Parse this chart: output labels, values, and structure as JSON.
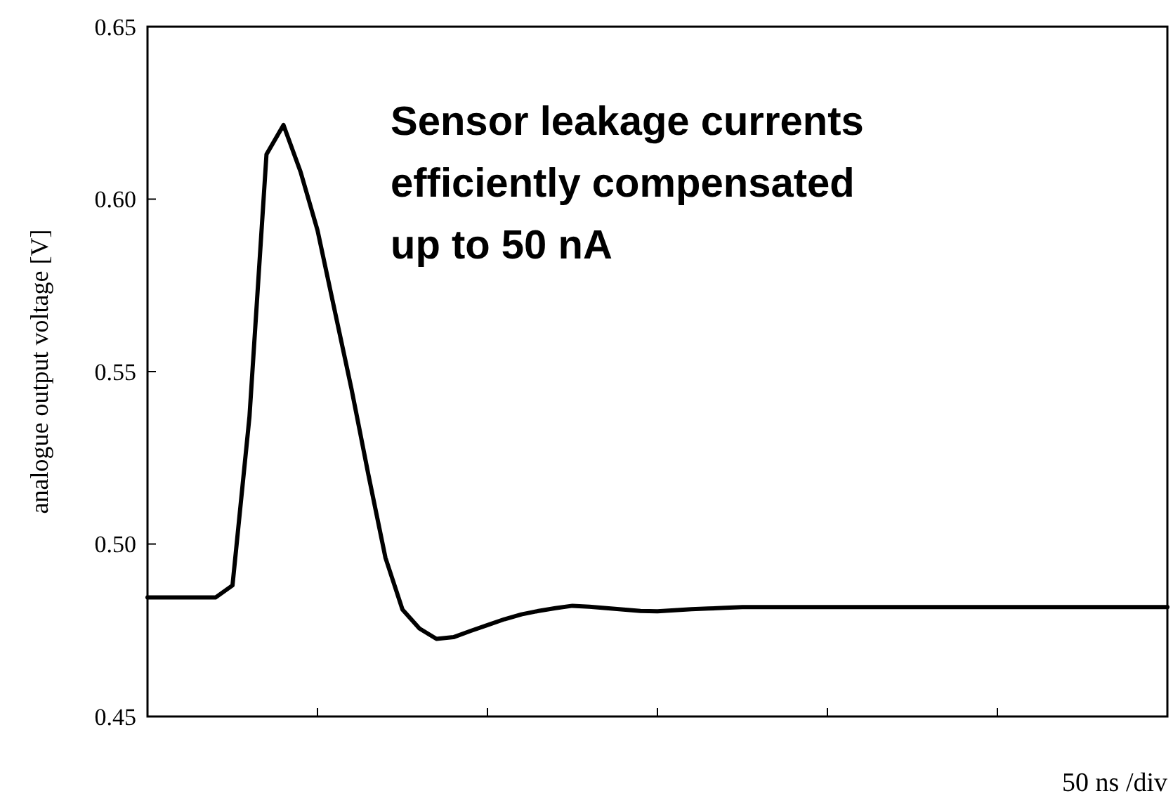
{
  "chart_data": {
    "type": "line",
    "xlabel": "50 ns /div",
    "ylabel": "analogue output voltage [V]",
    "annotations": [
      "Sensor leakage currents\nefficiently compensated\nup to 50 nA"
    ],
    "categories": [
      null,
      null,
      null,
      null,
      null,
      null,
      null,
      null,
      null,
      null,
      null,
      null,
      null,
      null,
      null,
      null,
      null,
      null,
      null,
      null,
      null,
      null,
      null,
      null,
      null,
      null,
      null,
      null,
      null,
      null,
      null,
      null,
      null,
      null,
      null,
      null,
      null,
      null,
      null,
      null,
      null,
      null,
      null,
      null,
      null,
      null,
      null,
      null,
      null,
      null,
      null,
      null,
      null,
      null,
      null,
      null,
      null,
      null,
      null,
      null,
      null
    ],
    "ylim": [
      0.45,
      0.65
    ],
    "yticks": [
      0.45,
      {
        "value": 0.5,
        "label": "0.50"
      },
      0.55,
      {
        "value": 0.6,
        "label": "0.60"
      },
      0.65
    ],
    "grid": false,
    "marker": "none",
    "line_style": "solid",
    "series": [
      {
        "color": "#000000",
        "values": [
          0.4845,
          0.4845,
          0.4845,
          0.4845,
          0.4845,
          0.488,
          0.537,
          0.613,
          0.6215,
          0.608,
          0.591,
          0.568,
          0.545,
          0.52,
          0.496,
          0.481,
          0.4755,
          0.4725,
          0.473,
          0.4748,
          0.4765,
          0.4782,
          0.4796,
          0.4806,
          0.4814,
          0.4821,
          0.4818,
          0.4814,
          0.481,
          0.4806,
          0.4805,
          0.4808,
          0.4811,
          0.4813,
          0.4815,
          0.4817,
          0.4817,
          0.4817,
          0.4817,
          0.4817,
          0.4817,
          0.4817,
          0.4817,
          0.4817,
          0.4817,
          0.4817,
          0.4817,
          0.4817,
          0.4817,
          0.4817,
          0.4817,
          0.4817,
          0.4817,
          0.4817,
          0.4817,
          0.4817,
          0.4817,
          0.4817,
          0.4817,
          0.4817,
          0.4817
        ]
      }
    ]
  }
}
